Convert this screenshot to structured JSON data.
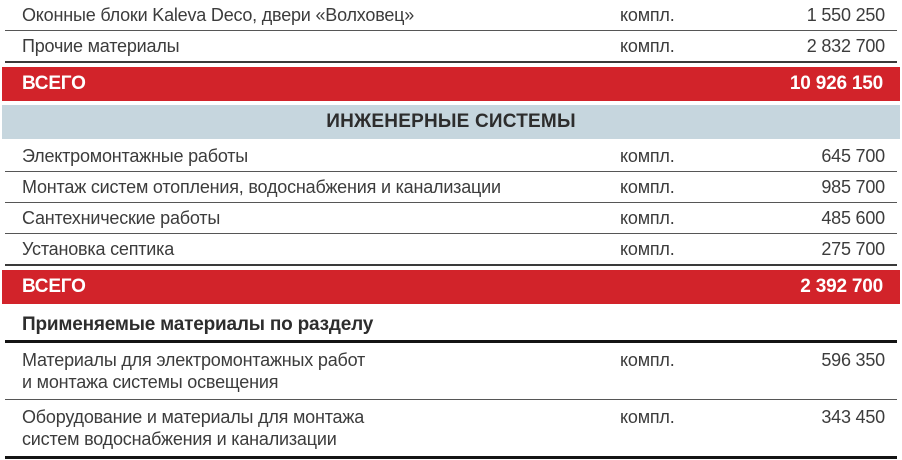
{
  "colors": {
    "accent_red": "#d2232a",
    "section_band": "#c6d6de",
    "text_dark": "#3c3c3c",
    "total_text": "#ffffff"
  },
  "table": {
    "rows": [
      {
        "type": "item",
        "lines": [
          "Оконные блоки Kaleva Deco, двери «Волховец»"
        ],
        "unit": "компл.",
        "value": "1 550 250"
      },
      {
        "type": "item",
        "lines": [
          "Прочие материалы"
        ],
        "unit": "компл.",
        "value": "2 832 700"
      },
      {
        "type": "total",
        "label": "ВСЕГО",
        "value": "10 926 150"
      },
      {
        "type": "section",
        "label": "ИНЖЕНЕРНЫЕ СИСТЕМЫ"
      },
      {
        "type": "item",
        "lines": [
          "Электромонтажные работы"
        ],
        "unit": "компл.",
        "value": "645 700"
      },
      {
        "type": "item",
        "lines": [
          "Монтаж систем отопления, водоснабжения и канализации"
        ],
        "unit": "компл.",
        "value": "985 700"
      },
      {
        "type": "item",
        "lines": [
          "Сантехнические работы"
        ],
        "unit": "компл.",
        "value": "485 600"
      },
      {
        "type": "item",
        "lines": [
          "Установка септика"
        ],
        "unit": "компл.",
        "value": "275 700"
      },
      {
        "type": "total",
        "label": "ВСЕГО",
        "value": "2 392 700"
      },
      {
        "type": "subheader",
        "label": "Применяемые материалы по разделу"
      },
      {
        "type": "item",
        "lines": [
          "Материалы для электромонтажных работ",
          "и монтажа системы освещения"
        ],
        "unit": "компл.",
        "value": "596 350"
      },
      {
        "type": "item",
        "lines": [
          "Оборудование и материалы для монтажа",
          "систем водоснабжения и канализации"
        ],
        "unit": "компл.",
        "value": "343 450"
      }
    ]
  }
}
